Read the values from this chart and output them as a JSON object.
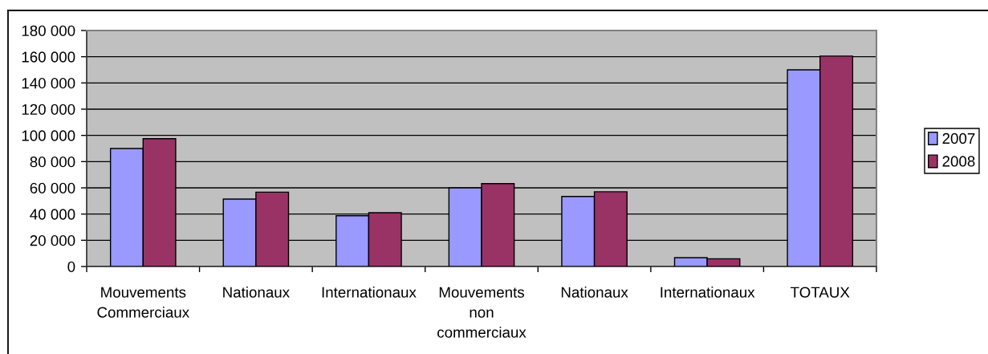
{
  "chart_data": {
    "type": "bar",
    "categories": [
      "Mouvements Commerciaux",
      "Nationaux",
      "Internationaux",
      "Mouvements non commerciaux",
      "Nationaux",
      "Internationaux",
      "TOTAUX"
    ],
    "series": [
      {
        "name": "2007",
        "color": "#9999ff",
        "values": [
          90000,
          51400,
          38700,
          60000,
          53400,
          6700,
          150000
        ]
      },
      {
        "name": "2008",
        "color": "#993366",
        "values": [
          97500,
          56700,
          41000,
          63200,
          57000,
          5900,
          160500
        ]
      }
    ],
    "ylim": [
      0,
      180000
    ],
    "yticks": [
      0,
      {
        "value": 20000,
        "label": "20 000"
      },
      {
        "value": 40000,
        "label": "40 000"
      },
      {
        "value": 60000,
        "label": "60 000"
      },
      {
        "value": 80000,
        "label": "80 000"
      },
      {
        "value": 100000,
        "label": "100 000"
      },
      {
        "value": 120000,
        "label": "120 000"
      },
      {
        "value": 140000,
        "label": "140 000"
      },
      {
        "value": 160000,
        "label": "160 000"
      },
      {
        "value": 180000,
        "label": "180 000"
      }
    ],
    "grid": "y",
    "legend": "right"
  }
}
